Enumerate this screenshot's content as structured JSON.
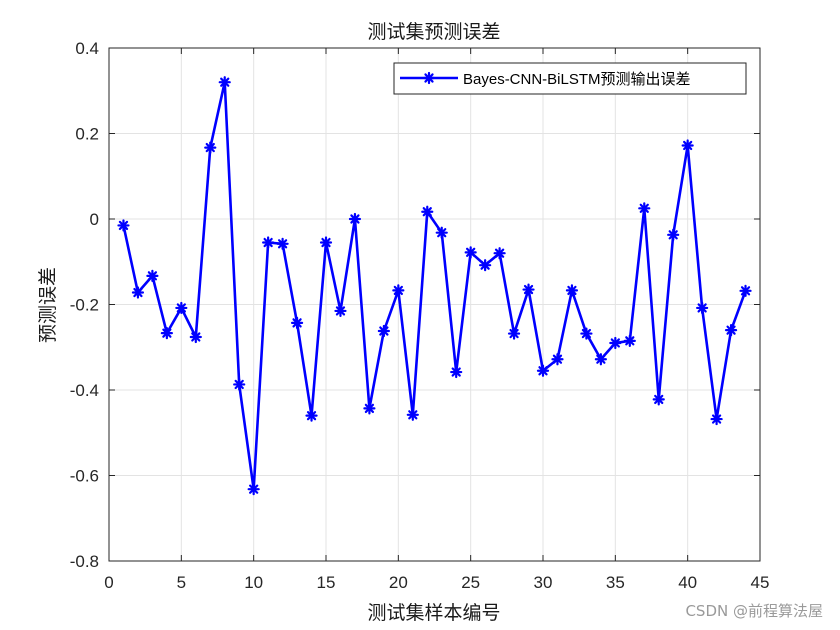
{
  "chart_data": {
    "type": "line",
    "title": "测试集预测误差",
    "xlabel": "测试集样本编号",
    "ylabel": "预测误差",
    "xlim": [
      0,
      45
    ],
    "ylim": [
      -0.8,
      0.4
    ],
    "x_ticks": [
      0,
      5,
      10,
      15,
      20,
      25,
      30,
      35,
      40,
      45
    ],
    "y_ticks": [
      -0.8,
      -0.6,
      -0.4,
      -0.2,
      0,
      0.2,
      0.4
    ],
    "grid": true,
    "legend_position": "top-right",
    "series": [
      {
        "name": "Bayes-CNN-BiLSTM预测输出误差",
        "color": "#0000ff",
        "marker": "asterisk",
        "x": [
          1,
          2,
          3,
          4,
          5,
          6,
          7,
          8,
          9,
          10,
          11,
          12,
          13,
          14,
          15,
          16,
          17,
          18,
          19,
          20,
          21,
          22,
          23,
          24,
          25,
          26,
          27,
          28,
          29,
          30,
          31,
          32,
          33,
          34,
          35,
          36,
          37,
          38,
          39,
          40,
          41,
          42,
          43,
          44
        ],
        "values": [
          -0.015,
          -0.172,
          -0.133,
          -0.267,
          -0.208,
          -0.276,
          0.167,
          0.32,
          -0.387,
          -0.632,
          -0.055,
          -0.058,
          -0.243,
          -0.46,
          -0.055,
          -0.215,
          0.0,
          -0.443,
          -0.262,
          -0.167,
          -0.458,
          0.017,
          -0.032,
          -0.358,
          -0.078,
          -0.108,
          -0.08,
          -0.268,
          -0.165,
          -0.355,
          -0.328,
          -0.167,
          -0.268,
          -0.328,
          -0.29,
          -0.285,
          0.025,
          -0.422,
          -0.037,
          0.172,
          -0.208,
          -0.468,
          -0.26,
          -0.168
        ]
      }
    ]
  },
  "watermark": "CSDN @前程算法屋"
}
